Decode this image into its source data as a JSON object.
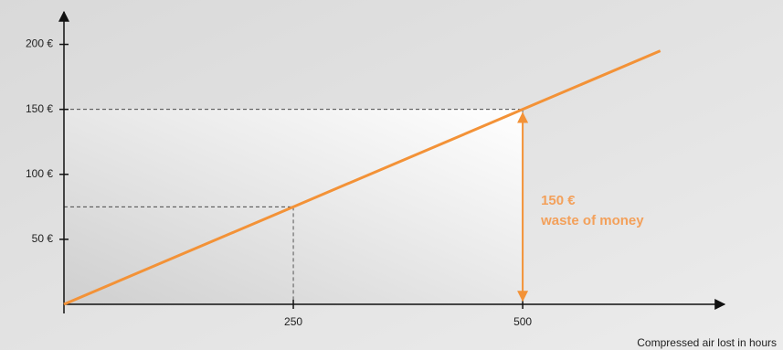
{
  "chart_data": {
    "type": "line",
    "x_label": "Compressed air lost in hours",
    "x": [
      0,
      250,
      500,
      650
    ],
    "series": [
      {
        "color": "#f39237",
        "values": [
          0,
          75,
          150,
          195
        ]
      }
    ],
    "xlim": [
      0,
      720
    ],
    "xticks": [
      250,
      500
    ],
    "ylim": [
      0,
      225
    ],
    "yticks": [
      {
        "value": 50,
        "label": "50 €"
      },
      {
        "value": 100,
        "label": "100 €"
      },
      {
        "value": 150,
        "label": "150 €"
      },
      {
        "value": 200,
        "label": "200 €"
      }
    ],
    "annotation": [
      "150 €",
      "waste of money"
    ]
  }
}
